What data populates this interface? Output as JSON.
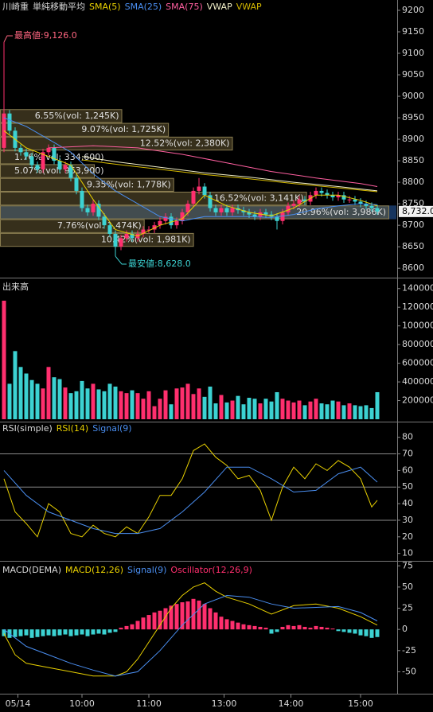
{
  "chart_data": [
    {
      "type": "candlestick",
      "title": "川崎重",
      "subtitle": "単純移動平均",
      "open": [
        8880,
        8960,
        8920,
        8880,
        8870,
        8860,
        8840,
        8830,
        8870,
        8880,
        8850,
        8830,
        8840,
        8810,
        8780,
        8740,
        8730,
        8750,
        8720,
        8700,
        8680,
        8650,
        8670,
        8680,
        8670,
        8680,
        8690,
        8690,
        8700,
        8710,
        8720,
        8700,
        8710,
        8730,
        8750,
        8780,
        8790,
        8770,
        8740,
        8730,
        8740,
        8730,
        8740,
        8735,
        8730,
        8725,
        8720,
        8730,
        8725,
        8720,
        8710,
        8730,
        8745,
        8750,
        8760,
        8755,
        8770,
        8780,
        8775,
        8770,
        8765,
        8770,
        8760,
        8760,
        8755,
        8750,
        8745,
        8740
      ],
      "high": [
        9126,
        8968,
        8928,
        8888,
        8878,
        8868,
        8848,
        8878,
        8888,
        8888,
        8858,
        8848,
        8848,
        8818,
        8788,
        8748,
        8758,
        8758,
        8728,
        8708,
        8688,
        8678,
        8688,
        8688,
        8688,
        8698,
        8698,
        8708,
        8718,
        8728,
        8728,
        8718,
        8738,
        8758,
        8788,
        8810,
        8798,
        8778,
        8748,
        8748,
        8748,
        8748,
        8748,
        8743,
        8738,
        8733,
        8738,
        8738,
        8733,
        8728,
        8738,
        8753,
        8758,
        8768,
        8768,
        8778,
        8788,
        8788,
        8783,
        8778,
        8778,
        8778,
        8768,
        8768,
        8763,
        8758,
        8753,
        8748
      ],
      "low": [
        8870,
        8912,
        8872,
        8862,
        8852,
        8832,
        8822,
        8822,
        8862,
        8842,
        8822,
        8822,
        8802,
        8772,
        8732,
        8722,
        8722,
        8712,
        8692,
        8672,
        8628,
        8642,
        8662,
        8662,
        8662,
        8672,
        8682,
        8682,
        8692,
        8702,
        8692,
        8692,
        8702,
        8722,
        8742,
        8772,
        8762,
        8732,
        8722,
        8722,
        8722,
        8722,
        8727,
        8722,
        8717,
        8712,
        8712,
        8717,
        8712,
        8690,
        8702,
        8722,
        8737,
        8742,
        8747,
        8747,
        8762,
        8767,
        8762,
        8757,
        8757,
        8752,
        8752,
        8747,
        8742,
        8737,
        8732,
        8724
      ],
      "close": [
        8960,
        8920,
        8880,
        8870,
        8860,
        8840,
        8830,
        8870,
        8880,
        8850,
        8830,
        8840,
        8810,
        8780,
        8740,
        8730,
        8750,
        8720,
        8700,
        8680,
        8650,
        8670,
        8680,
        8670,
        8680,
        8690,
        8690,
        8700,
        8710,
        8720,
        8700,
        8710,
        8730,
        8750,
        8780,
        8790,
        8770,
        8740,
        8730,
        8740,
        8730,
        8740,
        8735,
        8730,
        8725,
        8720,
        8730,
        8725,
        8720,
        8710,
        8730,
        8745,
        8750,
        8760,
        8755,
        8770,
        8780,
        8775,
        8770,
        8765,
        8770,
        8760,
        8760,
        8755,
        8750,
        8745,
        8740,
        8732
      ],
      "up_color": "#ff2f6e",
      "down_color": "#3cd2d2",
      "ylim": [
        8580,
        9224
      ],
      "yticks": [
        8600,
        8650,
        8700,
        8750,
        8800,
        8850,
        8900,
        8950,
        9000,
        9050,
        9100,
        9150,
        9200
      ],
      "lines": [
        {
          "name": "SMA(5)",
          "color": "#e8d000",
          "x": [
            0,
            4,
            8,
            12,
            16,
            20,
            24,
            28,
            32,
            36,
            40,
            44,
            48,
            52,
            56,
            60,
            64,
            67
          ],
          "values": [
            8920,
            8880,
            8860,
            8840,
            8760,
            8690,
            8675,
            8700,
            8715,
            8770,
            8745,
            8730,
            8722,
            8740,
            8770,
            8770,
            8758,
            8745
          ]
        },
        {
          "name": "SMA(25)",
          "color": "#4a8ef0",
          "x": [
            0,
            4,
            8,
            12,
            16,
            20,
            24,
            28,
            32,
            36,
            40,
            44,
            48,
            52,
            56,
            60,
            64,
            67
          ],
          "values": [
            8950,
            8930,
            8900,
            8870,
            8820,
            8780,
            8750,
            8720,
            8710,
            8720,
            8720,
            8720,
            8718,
            8725,
            8738,
            8745,
            8750,
            8748
          ]
        },
        {
          "name": "SMA(75)",
          "color": "#ff5fa0",
          "x": [
            8,
            16,
            24,
            32,
            40,
            48,
            56,
            64,
            67
          ],
          "values": [
            8880,
            8885,
            8880,
            8865,
            8845,
            8825,
            8810,
            8797,
            8790
          ]
        },
        {
          "name": "VWAP",
          "color": "#f2efc8",
          "x": [
            14,
            20,
            28,
            36,
            44,
            52,
            60,
            67
          ],
          "values": [
            8860,
            8848,
            8835,
            8822,
            8812,
            8800,
            8790,
            8780
          ]
        },
        {
          "name": "VWAP",
          "color": "#d4b800",
          "x": [
            14,
            20,
            28,
            36,
            44,
            52,
            60,
            67
          ],
          "values": [
            8852,
            8842,
            8830,
            8818,
            8808,
            8797,
            8787,
            8778
          ]
        }
      ],
      "volume_profile": {
        "bins": [
          8650,
          8682,
          8714,
          8746,
          8778,
          8810,
          8842,
          8874,
          8906,
          8938,
          8970
        ],
        "values": [
          10.42,
          7.76,
          20.96,
          16.52,
          9.35,
          5.07,
          1.76,
          12.52,
          9.07,
          6.55
        ],
        "value_labels": [
          "10.42%(vol: 1,981K)",
          "7.76%(vol: 1,474K)",
          "20.96%(vol: 3,986K)",
          "16.52%(vol: 3,141K)",
          "9.35%(vol: 1,778K)",
          "5.07%(vol: 963,900)",
          "1.76%(vol: 334,600)",
          "12.52%(vol: 2,380K)",
          "9.07%(vol: 1,725K)",
          "6.55%(vol: 1,245K)"
        ]
      },
      "last_price": {
        "value": 8732,
        "label": "8,732.0"
      },
      "high_label": {
        "value": 9126,
        "label": "最高値:9,126.0"
      },
      "low_label": {
        "value": 8628,
        "label": "最安値:8,628.0"
      }
    },
    {
      "type": "bar",
      "title": "出来高",
      "values": [
        1270000,
        380000,
        730000,
        560000,
        490000,
        420000,
        380000,
        330000,
        560000,
        450000,
        430000,
        340000,
        280000,
        300000,
        410000,
        330000,
        380000,
        320000,
        300000,
        380000,
        350000,
        300000,
        280000,
        310000,
        280000,
        220000,
        300000,
        140000,
        220000,
        310000,
        160000,
        330000,
        340000,
        380000,
        270000,
        330000,
        240000,
        350000,
        170000,
        260000,
        180000,
        200000,
        250000,
        160000,
        230000,
        220000,
        170000,
        220000,
        190000,
        290000,
        220000,
        200000,
        180000,
        200000,
        150000,
        190000,
        220000,
        170000,
        160000,
        200000,
        190000,
        150000,
        170000,
        150000,
        140000,
        150000,
        120000,
        290000
      ],
      "ylim": [
        0,
        1500000
      ],
      "yticks": [
        200000,
        400000,
        600000,
        800000,
        1000000,
        1200000,
        1400000
      ]
    },
    {
      "type": "line",
      "title": "RSI(simple)",
      "series": [
        {
          "name": "RSI(14)",
          "color": "#e8d000",
          "x": [
            0,
            2,
            4,
            6,
            8,
            10,
            12,
            14,
            16,
            18,
            20,
            22,
            24,
            26,
            28,
            30,
            32,
            34,
            36,
            38,
            40,
            42,
            44,
            46,
            48,
            50,
            52,
            54,
            56,
            58,
            60,
            62,
            64,
            66,
            67
          ],
          "values": [
            55,
            35,
            28,
            20,
            40,
            35,
            22,
            20,
            27,
            22,
            20,
            26,
            22,
            32,
            45,
            45,
            55,
            72,
            76,
            68,
            63,
            55,
            57,
            48,
            30,
            50,
            62,
            55,
            64,
            60,
            66,
            62,
            55,
            38,
            42
          ]
        },
        {
          "name": "Signal(9)",
          "color": "#4a8ef0",
          "x": [
            0,
            4,
            8,
            12,
            16,
            20,
            24,
            28,
            32,
            36,
            40,
            44,
            48,
            52,
            56,
            60,
            64,
            67
          ],
          "values": [
            60,
            45,
            35,
            30,
            25,
            22,
            22,
            25,
            35,
            47,
            62,
            62,
            55,
            47,
            48,
            58,
            62,
            53
          ]
        }
      ],
      "reference_lines": [
        30,
        50,
        70
      ],
      "ylim": [
        6,
        88
      ],
      "yticks": [
        10,
        20,
        30,
        40,
        50,
        60,
        70,
        80
      ]
    },
    {
      "type": "macd",
      "title": "MACD(DEMA)",
      "series": [
        {
          "name": "MACD(12,26)",
          "color": "#e8d000",
          "x": [
            0,
            2,
            4,
            8,
            12,
            16,
            20,
            22,
            24,
            26,
            28,
            30,
            32,
            34,
            36,
            38,
            40,
            44,
            48,
            52,
            56,
            60,
            64,
            67
          ],
          "values": [
            -5,
            -30,
            -40,
            -45,
            -50,
            -55,
            -55,
            -50,
            -35,
            -15,
            5,
            25,
            40,
            50,
            55,
            45,
            38,
            30,
            18,
            28,
            30,
            25,
            15,
            5
          ]
        },
        {
          "name": "Signal(9)",
          "color": "#4a8ef0",
          "x": [
            0,
            4,
            8,
            12,
            16,
            20,
            24,
            28,
            32,
            36,
            40,
            44,
            48,
            52,
            56,
            60,
            64,
            67
          ],
          "values": [
            0,
            -20,
            -30,
            -40,
            -48,
            -55,
            -50,
            -25,
            5,
            30,
            40,
            38,
            30,
            25,
            26,
            27,
            20,
            10
          ]
        }
      ],
      "oscillator": {
        "name": "Oscillator(12,26,9)",
        "up_color": "#ff2f6e",
        "down_color": "#3cd2d2",
        "values": [
          -8,
          -10,
          -9,
          -8,
          -7,
          -10,
          -9,
          -8,
          -7,
          -8,
          -7,
          -6,
          -8,
          -7,
          -6,
          -8,
          -6,
          -5,
          -6,
          -4,
          -3,
          2,
          4,
          6,
          10,
          14,
          17,
          20,
          22,
          25,
          28,
          30,
          32,
          33,
          36,
          34,
          30,
          25,
          20,
          15,
          12,
          10,
          8,
          6,
          5,
          4,
          3,
          2,
          -5,
          -3,
          3,
          5,
          4,
          5,
          3,
          2,
          4,
          3,
          2,
          1,
          -2,
          -3,
          -4,
          -5,
          -7,
          -8,
          -10,
          -9
        ]
      },
      "ylim": [
        -74,
        79
      ],
      "yticks": [
        -50,
        -25,
        0,
        25,
        50,
        75
      ],
      "xticks": [
        {
          "value": 2.5,
          "label": "05/14"
        },
        {
          "value": 14,
          "label": "10:00"
        },
        {
          "value": 26,
          "label": "11:00"
        },
        {
          "value": 39.5,
          "label": "13:00"
        },
        {
          "value": 51.5,
          "label": "14:00"
        },
        {
          "value": 64,
          "label": "15:00"
        }
      ]
    }
  ]
}
